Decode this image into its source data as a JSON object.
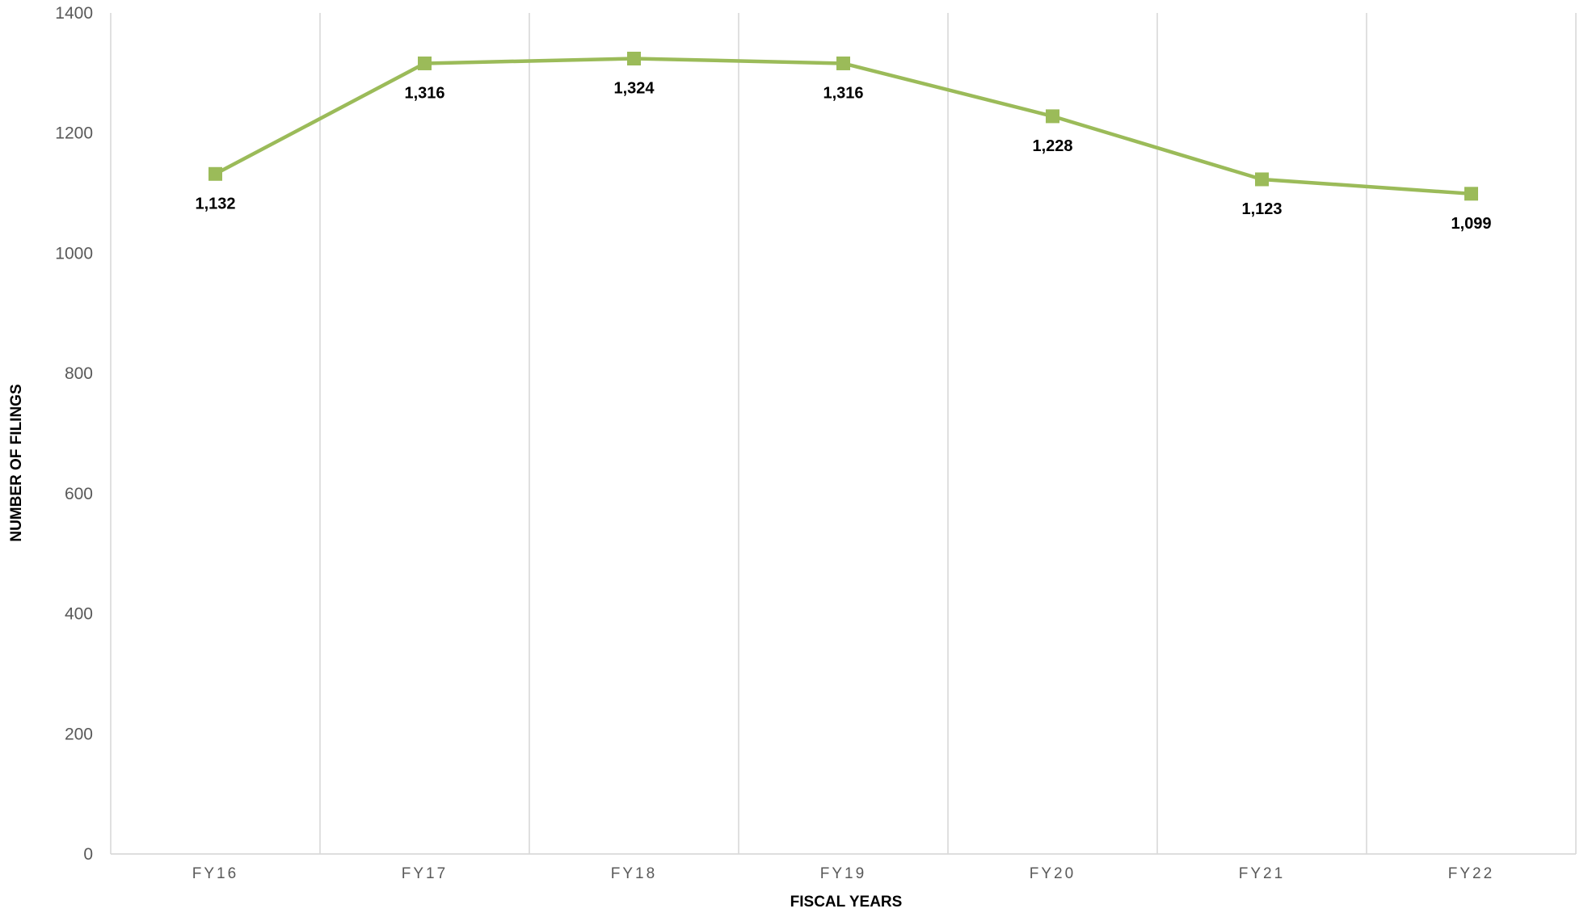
{
  "chart_data": {
    "type": "line",
    "categories": [
      "FY16",
      "FY17",
      "FY18",
      "FY19",
      "FY20",
      "FY21",
      "FY22"
    ],
    "series": [
      {
        "values": [
          1132,
          1316,
          1324,
          1316,
          1228,
          1123,
          1099
        ],
        "labels": [
          "1,132",
          "1,316",
          "1,324",
          "1,316",
          "1,228",
          "1,123",
          "1,099"
        ],
        "color": "#9BBB59",
        "marker": "square"
      }
    ],
    "yticks": [
      "0",
      "200",
      "400",
      "600",
      "800",
      "1000",
      "1200",
      "1400"
    ],
    "ylim": [
      0,
      1400
    ],
    "xlabel": "FISCAL YEARS",
    "ylabel": "NUMBER OF  FILINGS",
    "grid": "vertical category separators",
    "gridColor": "#D9D9D9"
  }
}
